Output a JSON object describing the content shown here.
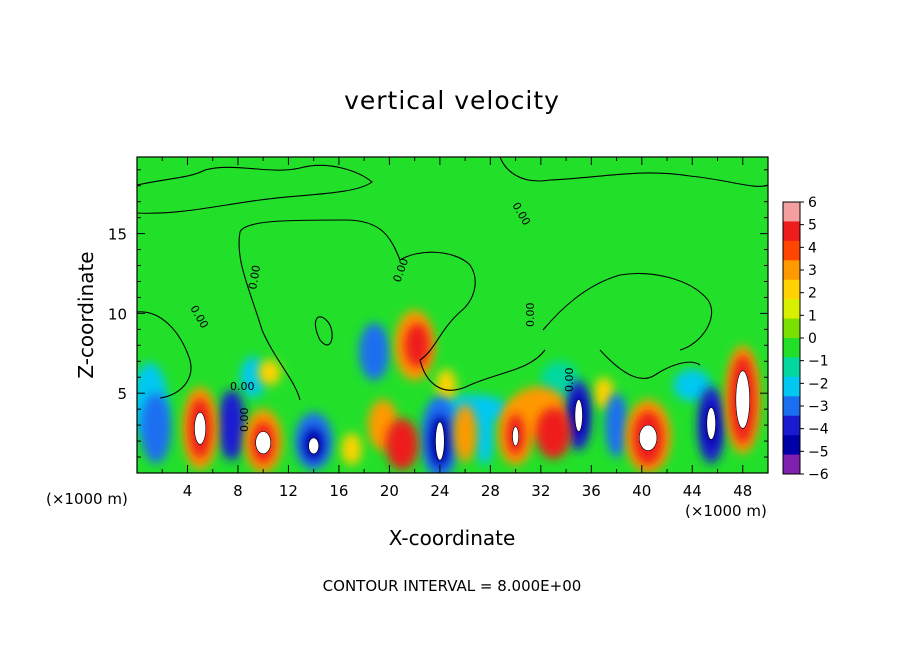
{
  "chart_data": {
    "type": "heatmap",
    "title": "vertical velocity",
    "xlabel": "X-coordinate",
    "ylabel": "Z-coordinate",
    "x_unit_label": "(×1000 m)",
    "xlim": [
      0,
      50
    ],
    "ylim": [
      0,
      19.8
    ],
    "x_ticks": [
      4,
      8,
      12,
      16,
      20,
      24,
      28,
      32,
      36,
      40,
      44,
      48
    ],
    "y_ticks": [
      5,
      10,
      15
    ],
    "contour_label": "0.00",
    "footer": "CONTOUR INTERVAL = 8.000E+00",
    "colorbar": {
      "levels": [
        6,
        5,
        4,
        3,
        2,
        1,
        0,
        -1,
        -2,
        -3,
        -4,
        -5,
        -6
      ],
      "labels": [
        "6",
        "5",
        "4",
        "3",
        "2",
        "1",
        "0",
        "−1",
        "−2",
        "−3",
        "−4",
        "−5",
        "−6"
      ],
      "colors": [
        "#f4a0a0",
        "#ee1c1c",
        "#ff4500",
        "#ff9900",
        "#ffd200",
        "#d8f000",
        "#7be000",
        "#22e02a",
        "#00d8a0",
        "#00c8f0",
        "#1a6ef0",
        "#1a1ad0",
        "#0000a8",
        "#8020b0"
      ]
    },
    "features": [
      {
        "x": 5.0,
        "z": 2.8,
        "w": 6.0,
        "note": "updraft"
      },
      {
        "x": 10.0,
        "z": 1.9,
        "w": 6.0,
        "note": "updraft"
      },
      {
        "x": 14.0,
        "z": 1.8,
        "w": -5.0,
        "note": "downdraft"
      },
      {
        "x": 18.8,
        "z": 7.6,
        "w": -3.5,
        "note": "downdraft"
      },
      {
        "x": 22.0,
        "z": 8.0,
        "w": 4.0,
        "note": "updraft"
      },
      {
        "x": 24.0,
        "z": 2.0,
        "w": -6.0,
        "note": "downdraft"
      },
      {
        "x": 30.0,
        "z": 2.4,
        "w": 5.0,
        "note": "updraft"
      },
      {
        "x": 35.0,
        "z": 3.6,
        "w": -6.0,
        "note": "downdraft"
      },
      {
        "x": 40.5,
        "z": 2.2,
        "w": 6.0,
        "note": "updraft"
      },
      {
        "x": 45.5,
        "z": 3.0,
        "w": -5.0,
        "note": "downdraft"
      },
      {
        "x": 48.0,
        "z": 4.6,
        "w": 6.0,
        "note": "updraft"
      }
    ]
  }
}
